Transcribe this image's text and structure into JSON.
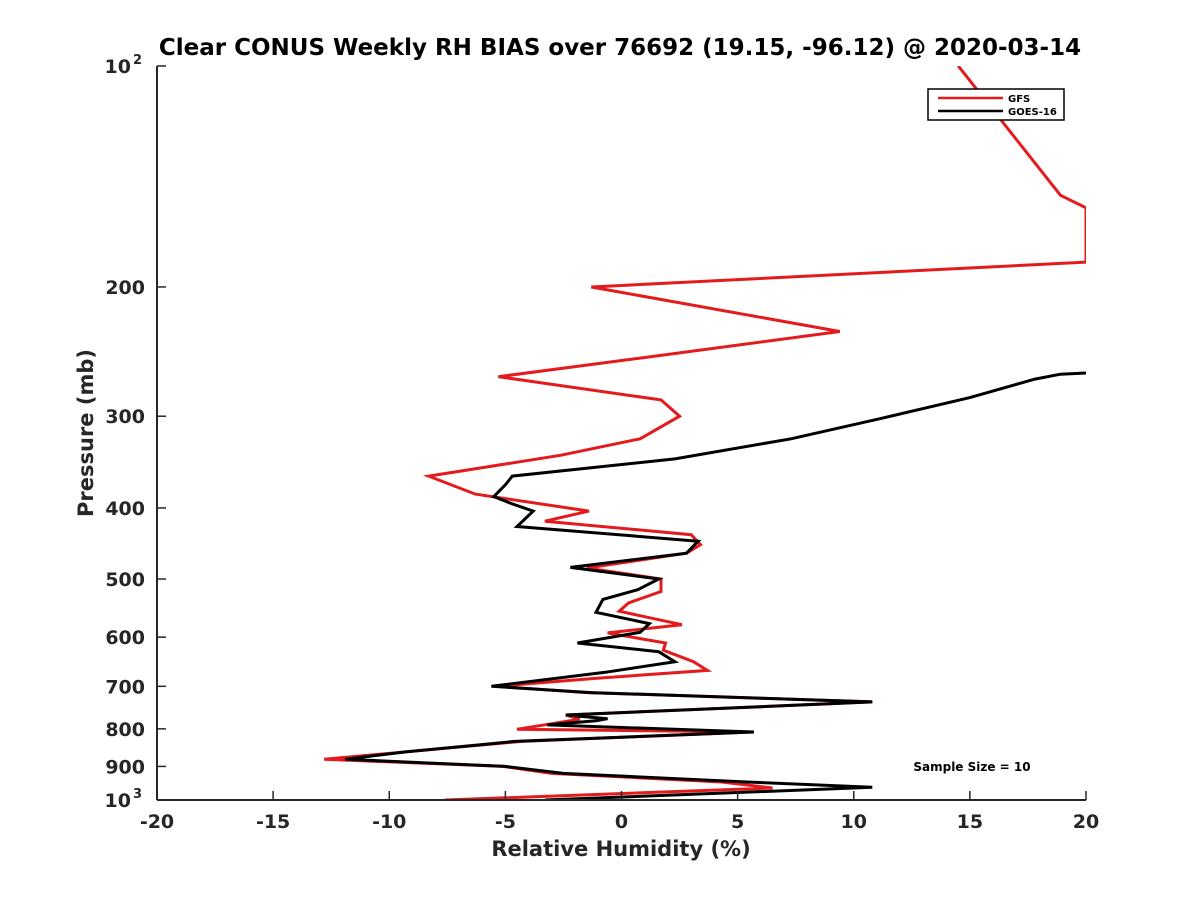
{
  "chart_data": {
    "type": "line",
    "title": "Clear CONUS Weekly RH BIAS over 76692 (19.15, -96.12) @ 2020-03-14",
    "xlabel": "Relative Humidity (%)",
    "ylabel": "Pressure (mb)",
    "xlim": [
      -20,
      20
    ],
    "ylim": [
      100,
      1000
    ],
    "yscale": "log",
    "yreversed": true,
    "x_ticks": [
      {
        "value": -20,
        "label": "-20"
      },
      {
        "value": -15,
        "label": "-15"
      },
      {
        "value": -10,
        "label": "-10"
      },
      {
        "value": -5,
        "label": "-5"
      },
      {
        "value": 0,
        "label": "0"
      },
      {
        "value": 5,
        "label": "5"
      },
      {
        "value": 10,
        "label": "10"
      },
      {
        "value": 15,
        "label": "15"
      },
      {
        "value": 20,
        "label": "20"
      }
    ],
    "y_ticks": [
      {
        "value": 100,
        "base": "10",
        "exp": "2"
      },
      {
        "value": 200,
        "label": "200"
      },
      {
        "value": 300,
        "label": "300"
      },
      {
        "value": 400,
        "label": "400"
      },
      {
        "value": 500,
        "label": "500"
      },
      {
        "value": 600,
        "label": "600"
      },
      {
        "value": 700,
        "label": "700"
      },
      {
        "value": 800,
        "label": "800"
      },
      {
        "value": 900,
        "label": "900"
      },
      {
        "value": 1000,
        "base": "10",
        "exp": "3"
      }
    ],
    "legend_position": "top-right",
    "annotation": "Sample Size = 10",
    "series": [
      {
        "name": "GFS",
        "color": "#e41a1c",
        "points": [
          [
            14.5,
            100
          ],
          [
            18.9,
            150
          ],
          [
            20,
            156
          ],
          [
            20,
            185
          ],
          [
            -1.3,
            200
          ],
          [
            9.4,
            230
          ],
          [
            0.8,
            250
          ],
          [
            -5.3,
            265
          ],
          [
            1.7,
            285
          ],
          [
            2.5,
            300
          ],
          [
            0.8,
            322
          ],
          [
            -2.6,
            339
          ],
          [
            -8.3,
            362
          ],
          [
            -6.3,
            383
          ],
          [
            -1.4,
            404
          ],
          [
            -3.3,
            417
          ],
          [
            3.0,
            435
          ],
          [
            3.4,
            449
          ],
          [
            2.8,
            461
          ],
          [
            -1.5,
            483
          ],
          [
            1.7,
            500
          ],
          [
            1.7,
            520
          ],
          [
            0.3,
            539
          ],
          [
            -0.1,
            553
          ],
          [
            2.6,
            577
          ],
          [
            -0.6,
            592
          ],
          [
            1.9,
            611
          ],
          [
            1.8,
            625
          ],
          [
            3.1,
            648
          ],
          [
            3.7,
            666
          ],
          [
            -1.2,
            683
          ],
          [
            -5.4,
            700
          ],
          [
            -1.5,
            714
          ],
          [
            10.8,
            735
          ],
          [
            -2.4,
            766
          ],
          [
            -1.8,
            776
          ],
          [
            -4.5,
            801
          ],
          [
            5.6,
            808
          ],
          [
            -4.3,
            832
          ],
          [
            -9.3,
            860
          ],
          [
            -12.8,
            880
          ],
          [
            -5.1,
            900
          ],
          [
            -3.0,
            920
          ],
          [
            4.3,
            945
          ],
          [
            6.5,
            963
          ],
          [
            -7.6,
            1000
          ]
        ]
      },
      {
        "name": "GOES-16",
        "color": "#000000",
        "points": [
          [
            20,
            262
          ],
          [
            18.9,
            263
          ],
          [
            17.8,
            267
          ],
          [
            15.0,
            283
          ],
          [
            11.2,
            302
          ],
          [
            7.3,
            322
          ],
          [
            2.3,
            343
          ],
          [
            -4.7,
            362
          ],
          [
            -5.0,
            372
          ],
          [
            -5.5,
            386
          ],
          [
            -4.7,
            395
          ],
          [
            -3.8,
            404
          ],
          [
            -4.5,
            424
          ],
          [
            3.3,
            444
          ],
          [
            2.8,
            461
          ],
          [
            -2.2,
            482
          ],
          [
            1.6,
            500
          ],
          [
            0.7,
            517
          ],
          [
            -0.8,
            533
          ],
          [
            -1.1,
            555
          ],
          [
            1.2,
            575
          ],
          [
            0.8,
            591
          ],
          [
            -1.9,
            611
          ],
          [
            1.6,
            628
          ],
          [
            2.3,
            648
          ],
          [
            -0.7,
            670
          ],
          [
            -5.6,
            700
          ],
          [
            -1.3,
            714
          ],
          [
            10.8,
            735
          ],
          [
            -2.4,
            766
          ],
          [
            -0.6,
            775
          ],
          [
            -1.1,
            780
          ],
          [
            -3.2,
            790
          ],
          [
            5.7,
            808
          ],
          [
            -4.6,
            832
          ],
          [
            -9.3,
            860
          ],
          [
            -11.9,
            880
          ],
          [
            -5.0,
            900
          ],
          [
            -2.5,
            920
          ],
          [
            5.4,
            945
          ],
          [
            10.8,
            961
          ],
          [
            -3.3,
            1000
          ]
        ]
      }
    ]
  }
}
